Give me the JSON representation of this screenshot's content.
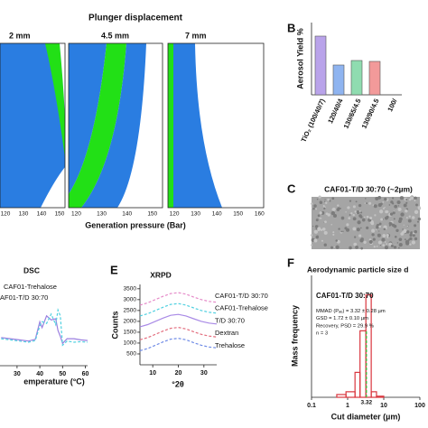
{
  "panel_a": {
    "title": "Plunger displacement",
    "subpanels": [
      {
        "label": "2 mm",
        "ticks": [
          "120",
          "130",
          "140",
          "150"
        ]
      },
      {
        "label": "4.5 mm",
        "ticks": [
          "120",
          "130",
          "140",
          "150"
        ]
      },
      {
        "label": "7 mm",
        "ticks": [
          "120",
          "130",
          "140",
          "150",
          "160"
        ]
      }
    ],
    "xlabel": "Generation pressure (Bar)"
  },
  "panel_c": {
    "letter": "C",
    "title": "CAF01-T/D 30:70 (~2µm)"
  },
  "chart_data": [
    {
      "type": "bar",
      "letter": "B",
      "ylabel": "Aerosol Yield %",
      "categories": [
        "TiO₂ (100/40/7)",
        "120/40/4",
        "130/65/4.5",
        "130/90/4.5",
        "100/"
      ],
      "values": [
        65,
        33,
        38,
        37,
        null
      ],
      "colors": [
        "#b9a3ea",
        "#8fb4f0",
        "#8fdcb0",
        "#f29a9a",
        "#cccccc"
      ],
      "ylim": [
        0,
        80
      ]
    },
    {
      "type": "line",
      "title": "DSC",
      "xlabel": "emperature (°C)",
      "x": [
        23,
        27,
        31,
        35,
        38,
        40,
        41,
        43,
        45,
        47,
        48,
        49,
        50,
        52,
        55,
        58,
        61
      ],
      "series": [
        {
          "name": "CAF01-Trehalose",
          "color": "#9b7fe0",
          "dash": false,
          "values": [
            4.8,
            4.6,
            4.4,
            4.2,
            4.5,
            7.5,
            6.5,
            8.5,
            7.8,
            8.0,
            6.0,
            5.0,
            3.8,
            4.6,
            4.6,
            4.4,
            4.3
          ]
        },
        {
          "name": "AF01-T/D 30:70",
          "color": "#4fd0e0",
          "dash": true,
          "values": [
            4.6,
            4.4,
            4.2,
            4.0,
            4.3,
            6.8,
            7.5,
            7.2,
            8.8,
            7.0,
            9.5,
            8.5,
            3.5,
            4.2,
            4.0,
            4.1,
            4.0
          ]
        }
      ],
      "xlim": [
        22.5,
        61
      ],
      "xticks": [
        30,
        40,
        50,
        60
      ],
      "ylim": [
        0,
        10
      ]
    },
    {
      "type": "line",
      "letter": "E",
      "title": "XRPD",
      "xlabel": "°2θ",
      "ylabel": "Counts",
      "x": [
        5,
        8,
        11,
        14,
        17,
        20,
        23,
        26,
        29,
        32,
        35
      ],
      "series": [
        {
          "name": "CAF01-T/D 30:70",
          "color": "#e58ac8",
          "dash": true,
          "values": [
            2750,
            2850,
            3000,
            3150,
            3280,
            3320,
            3250,
            3120,
            3000,
            2920,
            2880
          ]
        },
        {
          "name": "CAF01-Trehalose",
          "color": "#4fd0e0",
          "dash": true,
          "values": [
            2250,
            2350,
            2500,
            2650,
            2780,
            2820,
            2750,
            2620,
            2500,
            2420,
            2380
          ]
        },
        {
          "name": "T/D 30:70",
          "color": "#a98ae6",
          "dash": false,
          "values": [
            1750,
            1850,
            2000,
            2150,
            2280,
            2320,
            2250,
            2120,
            2000,
            1920,
            1880
          ]
        },
        {
          "name": "Dextran",
          "color": "#e36d7e",
          "dash": true,
          "values": [
            1150,
            1250,
            1400,
            1550,
            1680,
            1720,
            1650,
            1520,
            1400,
            1320,
            1280
          ]
        },
        {
          "name": "Trehalose",
          "color": "#6f8be6",
          "dash": true,
          "values": [
            650,
            750,
            900,
            1050,
            1180,
            1220,
            1150,
            1020,
            900,
            820,
            780
          ]
        }
      ],
      "xlim": [
        5,
        35
      ],
      "xticks": [
        10,
        20,
        30
      ],
      "ylim": [
        0,
        3700
      ],
      "yticks": [
        500,
        1000,
        1500,
        2000,
        2500,
        3000,
        3500
      ]
    },
    {
      "type": "histogram",
      "letter": "F",
      "title": "Aerodynamic particle size d",
      "xlabel": "Cut diameter (µm)",
      "ylabel": "Mass frequency",
      "annotations": [
        "CAF01-T/D 30:70",
        "MMAD (Pₐₑ) = 3.32 ± 0.28 µm",
        "GSD = 1.72 ± 0.10 µm",
        "Recovery, PSD = 29.9 %",
        "n = 3"
      ],
      "bins": [
        0.5,
        0.9,
        1.6,
        2.2,
        3.2,
        4.5,
        6.3,
        10
      ],
      "counts": [
        0.05,
        0.1,
        0.45,
        1.2,
        1.85,
        0.1,
        0.02
      ],
      "color": "#d9363e",
      "median": 3.32,
      "median_color": "#2ecc40",
      "xscale": "log",
      "xlim": [
        0.1,
        100
      ],
      "xticks": [
        0.1,
        1,
        10,
        100
      ],
      "ylim": [
        0,
        2.2
      ]
    }
  ]
}
